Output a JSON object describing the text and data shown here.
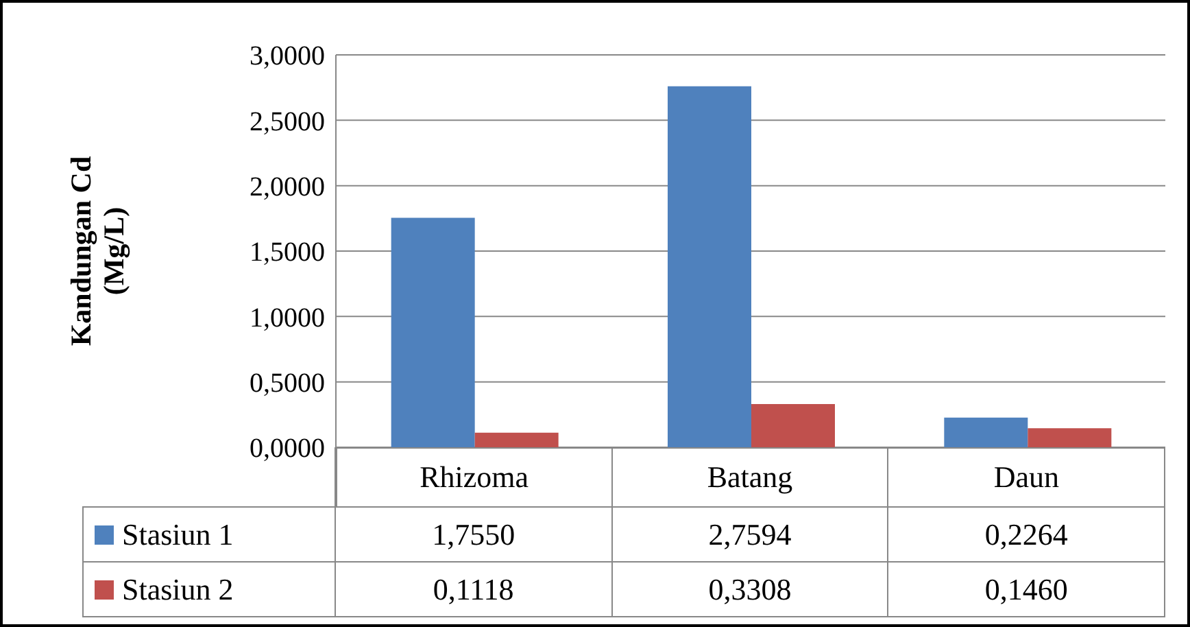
{
  "chart_data": {
    "type": "bar",
    "ylabel": "Kandungan Cd (Mg/L)",
    "categories": [
      "Rhizoma",
      "Batang",
      "Daun"
    ],
    "series": [
      {
        "name": "Stasiun 1",
        "color": "#4f81bd",
        "values": [
          1.755,
          2.7594,
          0.2264
        ],
        "value_labels": [
          "1,7550",
          "2,7594",
          "0,2264"
        ]
      },
      {
        "name": "Stasiun 2",
        "color": "#c0504d",
        "values": [
          0.1118,
          0.3308,
          0.146
        ],
        "value_labels": [
          "0,1118",
          "0,3308",
          "0,1460"
        ]
      }
    ],
    "ylim": [
      0,
      3
    ],
    "yticks": [
      {
        "value": 0,
        "label": "0,0000"
      },
      {
        "value": 0.5,
        "label": "0,5000"
      },
      {
        "value": 1,
        "label": "1,0000"
      },
      {
        "value": 1.5,
        "label": "1,5000"
      },
      {
        "value": 2,
        "label": "2,0000"
      },
      {
        "value": 2.5,
        "label": "2,5000"
      },
      {
        "value": 3,
        "label": "3,0000"
      }
    ],
    "grid": "y",
    "legend": "bottom left"
  }
}
